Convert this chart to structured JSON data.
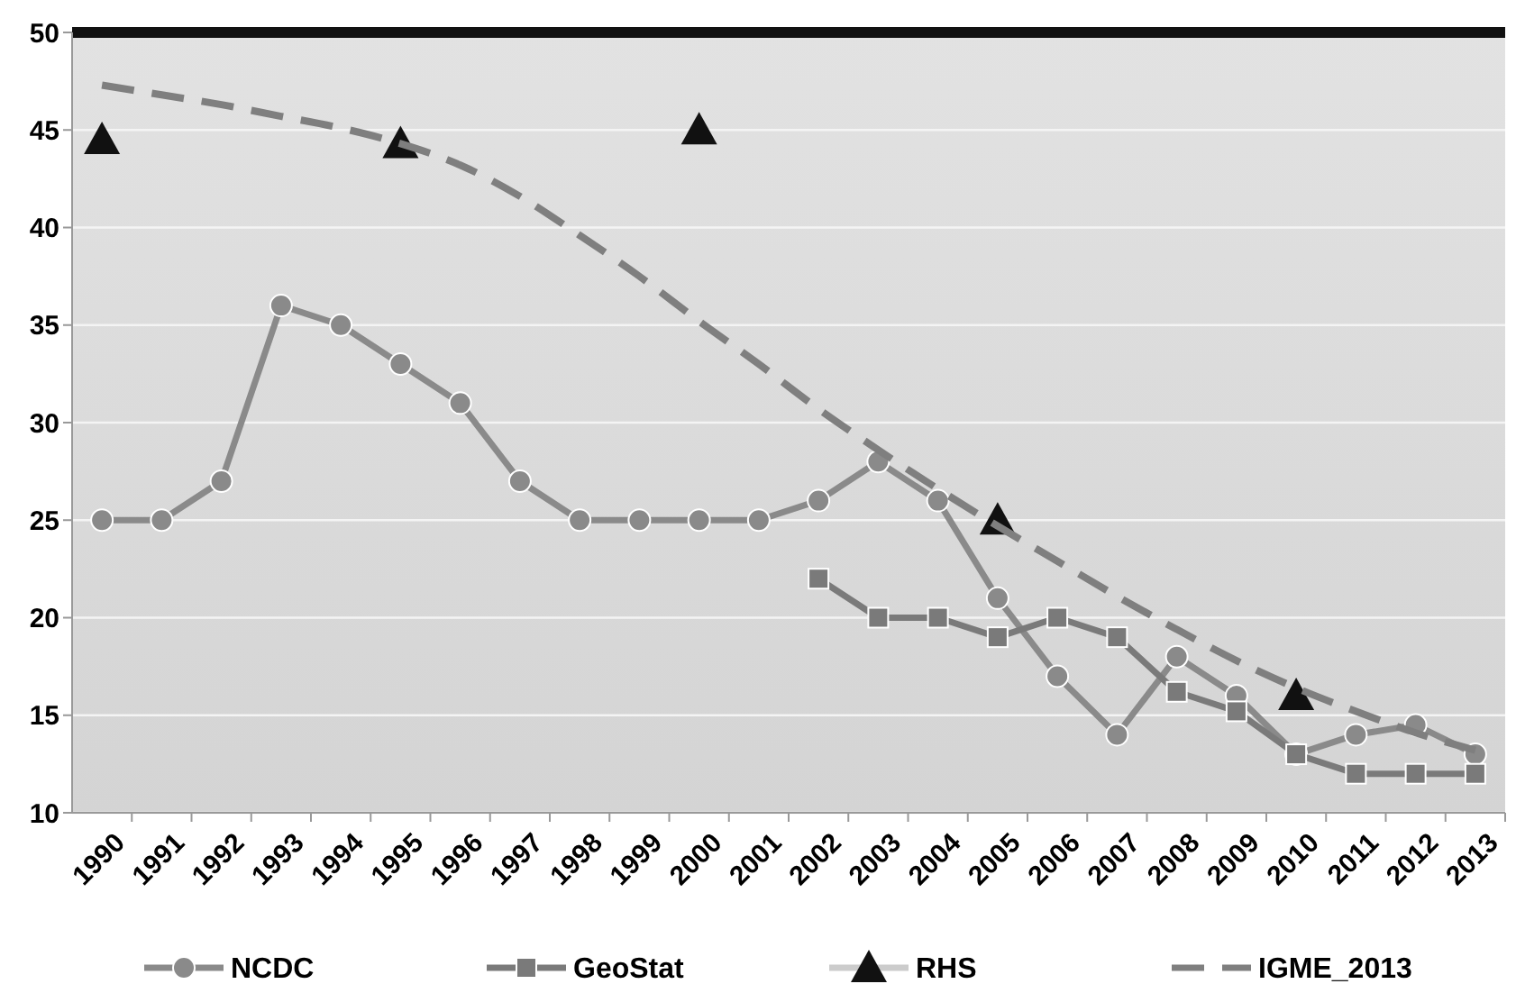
{
  "chart_data": {
    "type": "line",
    "categories": [
      "1990",
      "1991",
      "1992",
      "1993",
      "1994",
      "1995",
      "1996",
      "1997",
      "1998",
      "1999",
      "2000",
      "2001",
      "2002",
      "2003",
      "2004",
      "2005",
      "2006",
      "2007",
      "2008",
      "2009",
      "2010",
      "2011",
      "2012",
      "2013"
    ],
    "ylim": [
      10,
      50
    ],
    "yticks": [
      10,
      15,
      20,
      25,
      30,
      35,
      40,
      45,
      50
    ],
    "grid": "y",
    "legend": "bottom",
    "series": [
      {
        "name": "NCDC",
        "color": "#8a8a8a",
        "marker": "circle",
        "values": [
          25,
          25,
          27,
          36,
          35,
          33,
          31,
          27,
          25,
          25,
          25,
          25,
          26,
          28,
          26,
          21,
          17,
          14,
          18,
          16,
          13,
          14,
          14.5,
          13
        ]
      },
      {
        "name": "GeoStat",
        "color": "#7a7a7a",
        "marker": "square",
        "values": [
          null,
          null,
          null,
          null,
          null,
          null,
          null,
          null,
          null,
          null,
          null,
          null,
          22,
          20,
          20,
          19,
          20,
          19,
          16.2,
          15.2,
          13,
          12,
          12,
          12
        ]
      },
      {
        "name": "RHS",
        "type": "scatter",
        "color": "#111111",
        "marker": "triangle",
        "values": [
          44.5,
          null,
          null,
          null,
          null,
          44.3,
          null,
          null,
          null,
          null,
          45,
          null,
          null,
          null,
          null,
          25,
          null,
          null,
          null,
          null,
          16,
          null,
          null,
          null
        ]
      },
      {
        "name": "IGME_2013",
        "color": "#7f7f7f",
        "marker": "none",
        "line_style": "dashed",
        "values": [
          47.3,
          46.8,
          46.3,
          45.7,
          45.1,
          44.3,
          43.2,
          41.6,
          39.6,
          37.5,
          35.2,
          33,
          30.7,
          28.6,
          26.6,
          24.7,
          22.9,
          21.1,
          19.4,
          17.8,
          16.4,
          15.2,
          14.1,
          13.2
        ]
      }
    ]
  }
}
